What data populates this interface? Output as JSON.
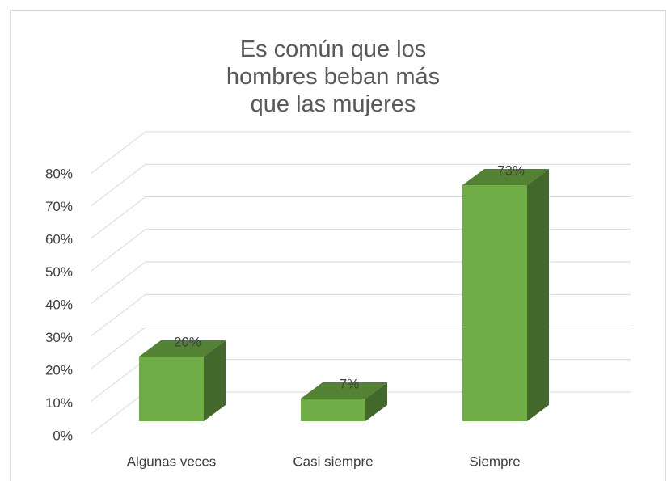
{
  "chart_data": {
    "type": "bar3d",
    "title": "Es común que los hombres beban más que las mujeres",
    "categories": [
      "Algunas veces",
      "Casi siempre",
      "Siempre"
    ],
    "values": [
      20,
      7,
      73
    ],
    "value_labels": [
      "20%",
      "7%",
      "73%"
    ],
    "color": "#70ad47",
    "ylim": [
      0,
      80
    ],
    "yticks": [
      {
        "value": 0,
        "label": "0%"
      },
      {
        "value": 10,
        "label": "10%"
      },
      {
        "value": 20,
        "label": "20%"
      },
      {
        "value": 30,
        "label": "30%"
      },
      {
        "value": 40,
        "label": "40%"
      },
      {
        "value": 50,
        "label": "50%"
      },
      {
        "value": 60,
        "label": "60%"
      },
      {
        "value": 70,
        "label": "70%"
      },
      {
        "value": 80,
        "label": "80%"
      }
    ],
    "grid": true
  }
}
